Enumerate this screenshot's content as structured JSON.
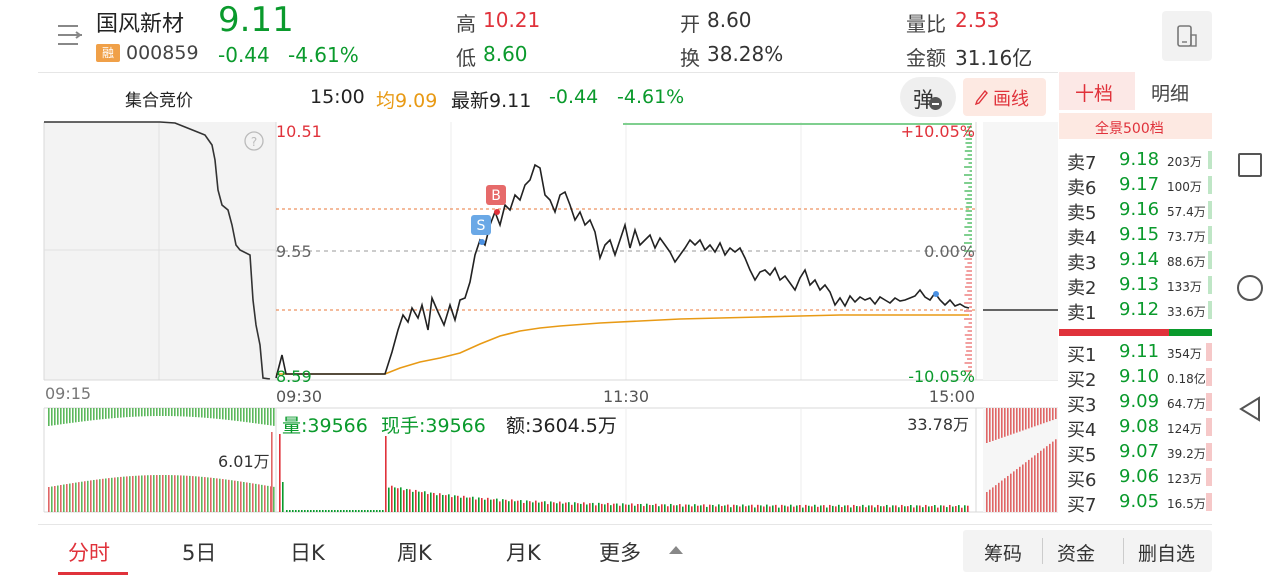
{
  "header": {
    "stock_name": "国风新材",
    "price": "9.11",
    "margin_badge": "融",
    "code": "000859",
    "change": "-0.44",
    "change_pct": "-4.61%",
    "high_label": "高",
    "high": "10.21",
    "low_label": "低",
    "low": "8.60",
    "open_label": "开",
    "open": "8.60",
    "turnover_label": "换",
    "turnover": "38.28%",
    "vol_ratio_label": "量比",
    "vol_ratio": "2.53",
    "amount_label": "金额",
    "amount": "31.16亿"
  },
  "infobar": {
    "auction_label": "集合竞价",
    "time": "15:00",
    "avg": "均9.09",
    "latest": "最新9.11",
    "change": "-0.44",
    "change_pct": "-4.61%",
    "popup_button": "弹",
    "draw_button": "画线"
  },
  "chart": {
    "price_top": "10.51",
    "price_mid": "9.55",
    "price_bottom": "8.59",
    "pct_top": "+10.05%",
    "pct_mid": "0.00%",
    "pct_bottom": "-10.05%",
    "time_auction": "09:15",
    "time_open": "09:30",
    "time_mid": "11:30",
    "time_close": "15:00",
    "help_icon": "?",
    "marker_b": "B",
    "marker_s": "S",
    "vol_label": "量:39566",
    "hand_label": "现手:39566",
    "amt_label": "额:3604.5万",
    "vol_max": "33.78万",
    "auction_vol": "6.01万"
  },
  "orderbook": {
    "tab_ten": "十档",
    "tab_detail": "明细",
    "full_view": "全景500档",
    "asks": [
      {
        "label": "卖7",
        "price": "9.18",
        "vol": "203万"
      },
      {
        "label": "卖6",
        "price": "9.17",
        "vol": "100万"
      },
      {
        "label": "卖5",
        "price": "9.16",
        "vol": "57.4万"
      },
      {
        "label": "卖4",
        "price": "9.15",
        "vol": "73.7万"
      },
      {
        "label": "卖3",
        "price": "9.14",
        "vol": "88.6万"
      },
      {
        "label": "卖2",
        "price": "9.13",
        "vol": "133万"
      },
      {
        "label": "卖1",
        "price": "9.12",
        "vol": "33.6万"
      }
    ],
    "bids": [
      {
        "label": "买1",
        "price": "9.11",
        "vol": "354万"
      },
      {
        "label": "买2",
        "price": "9.10",
        "vol": "0.18亿"
      },
      {
        "label": "买3",
        "price": "9.09",
        "vol": "64.7万"
      },
      {
        "label": "买4",
        "price": "9.08",
        "vol": "124万"
      },
      {
        "label": "买5",
        "price": "9.07",
        "vol": "39.2万"
      },
      {
        "label": "买6",
        "price": "9.06",
        "vol": "123万"
      },
      {
        "label": "买7",
        "price": "9.05",
        "vol": "16.5万"
      }
    ]
  },
  "bottom_tabs": {
    "t1": "分时",
    "t2": "5日",
    "t3": "日K",
    "t4": "周K",
    "t5": "月K",
    "t6": "更多",
    "chips": "筹码",
    "funds": "资金",
    "remove": "删自选"
  },
  "colors": {
    "up": "#e0323b",
    "down": "#0a9a2c",
    "avg": "#e89a15",
    "accent": "#e0323b"
  }
}
